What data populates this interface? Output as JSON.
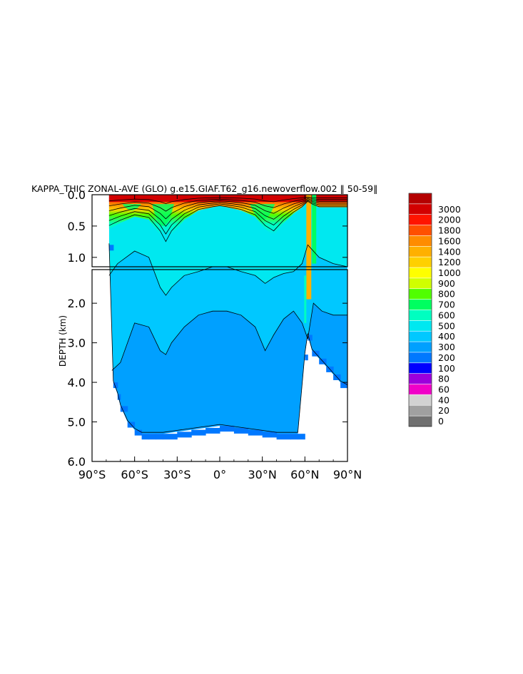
{
  "chart_data": {
    "type": "heatmap",
    "title": "KAPPA_THIC ZONAL-AVE (GLO) g.e15.GIAF.T62_g16.newoverflow.002 ‖ 50-59‖",
    "ylabel": "DEPTH (km)",
    "xlabel": "",
    "x_ticks": [
      {
        "value": -90,
        "label": "90°S"
      },
      {
        "value": -60,
        "label": "60°S"
      },
      {
        "value": -30,
        "label": "30°S"
      },
      {
        "value": 0,
        "label": "0°"
      },
      {
        "value": 30,
        "label": "30°N"
      },
      {
        "value": 60,
        "label": "60°N"
      },
      {
        "value": 90,
        "label": "90°N"
      }
    ],
    "xlim": [
      -90,
      90
    ],
    "upper_panel": {
      "ylim": [
        0.0,
        1.15
      ],
      "y_ticks": [
        {
          "value": 0.0,
          "label": "0.0"
        },
        {
          "value": 0.5,
          "label": "0.5"
        },
        {
          "value": 1.0,
          "label": "1.0"
        }
      ]
    },
    "lower_panel": {
      "ylim": [
        1.15,
        6.0
      ],
      "y_ticks": [
        {
          "value": 2.0,
          "label": "2.0"
        },
        {
          "value": 3.0,
          "label": "3.0"
        },
        {
          "value": 4.0,
          "label": "4.0"
        },
        {
          "value": 5.0,
          "label": "5.0"
        },
        {
          "value": 6.0,
          "label": "6.0"
        }
      ]
    },
    "y_reversed": true,
    "colorbar": {
      "levels": [
        "0",
        "20",
        "40",
        "60",
        "80",
        "100",
        "200",
        "300",
        "400",
        "500",
        "600",
        "700",
        "800",
        "900",
        "1000",
        "1200",
        "1400",
        "1600",
        "1800",
        "2000",
        "3000"
      ],
      "colors": [
        "#707070",
        "#a0a0a0",
        "#d2d2d2",
        "#f000c8",
        "#9c00dc",
        "#0000ff",
        "#0078ff",
        "#00a0ff",
        "#00c8ff",
        "#00e8f0",
        "#00ffc0",
        "#00ff60",
        "#50ff00",
        "#d0ff00",
        "#ffff00",
        "#ffd000",
        "#ffb000",
        "#ff8c00",
        "#ff5000",
        "#ff1400",
        "#d20000",
        "#b40000"
      ]
    },
    "depth_profile": {
      "lat": [
        -78,
        -75,
        -72,
        -70,
        -65,
        -60,
        -55,
        -50,
        -45,
        -40,
        -30,
        -20,
        -10,
        0,
        10,
        20,
        30,
        40,
        50,
        55,
        60,
        62,
        65,
        70,
        75,
        80,
        85,
        90
      ],
      "bottom_km": [
        0.8,
        4.0,
        4.3,
        4.6,
        5.0,
        5.2,
        5.3,
        5.3,
        5.3,
        5.3,
        5.25,
        5.2,
        5.15,
        5.1,
        5.15,
        5.2,
        5.25,
        5.3,
        5.3,
        5.3,
        3.3,
        2.8,
        3.2,
        3.4,
        3.6,
        3.8,
        4.0,
        4.1
      ]
    }
  }
}
